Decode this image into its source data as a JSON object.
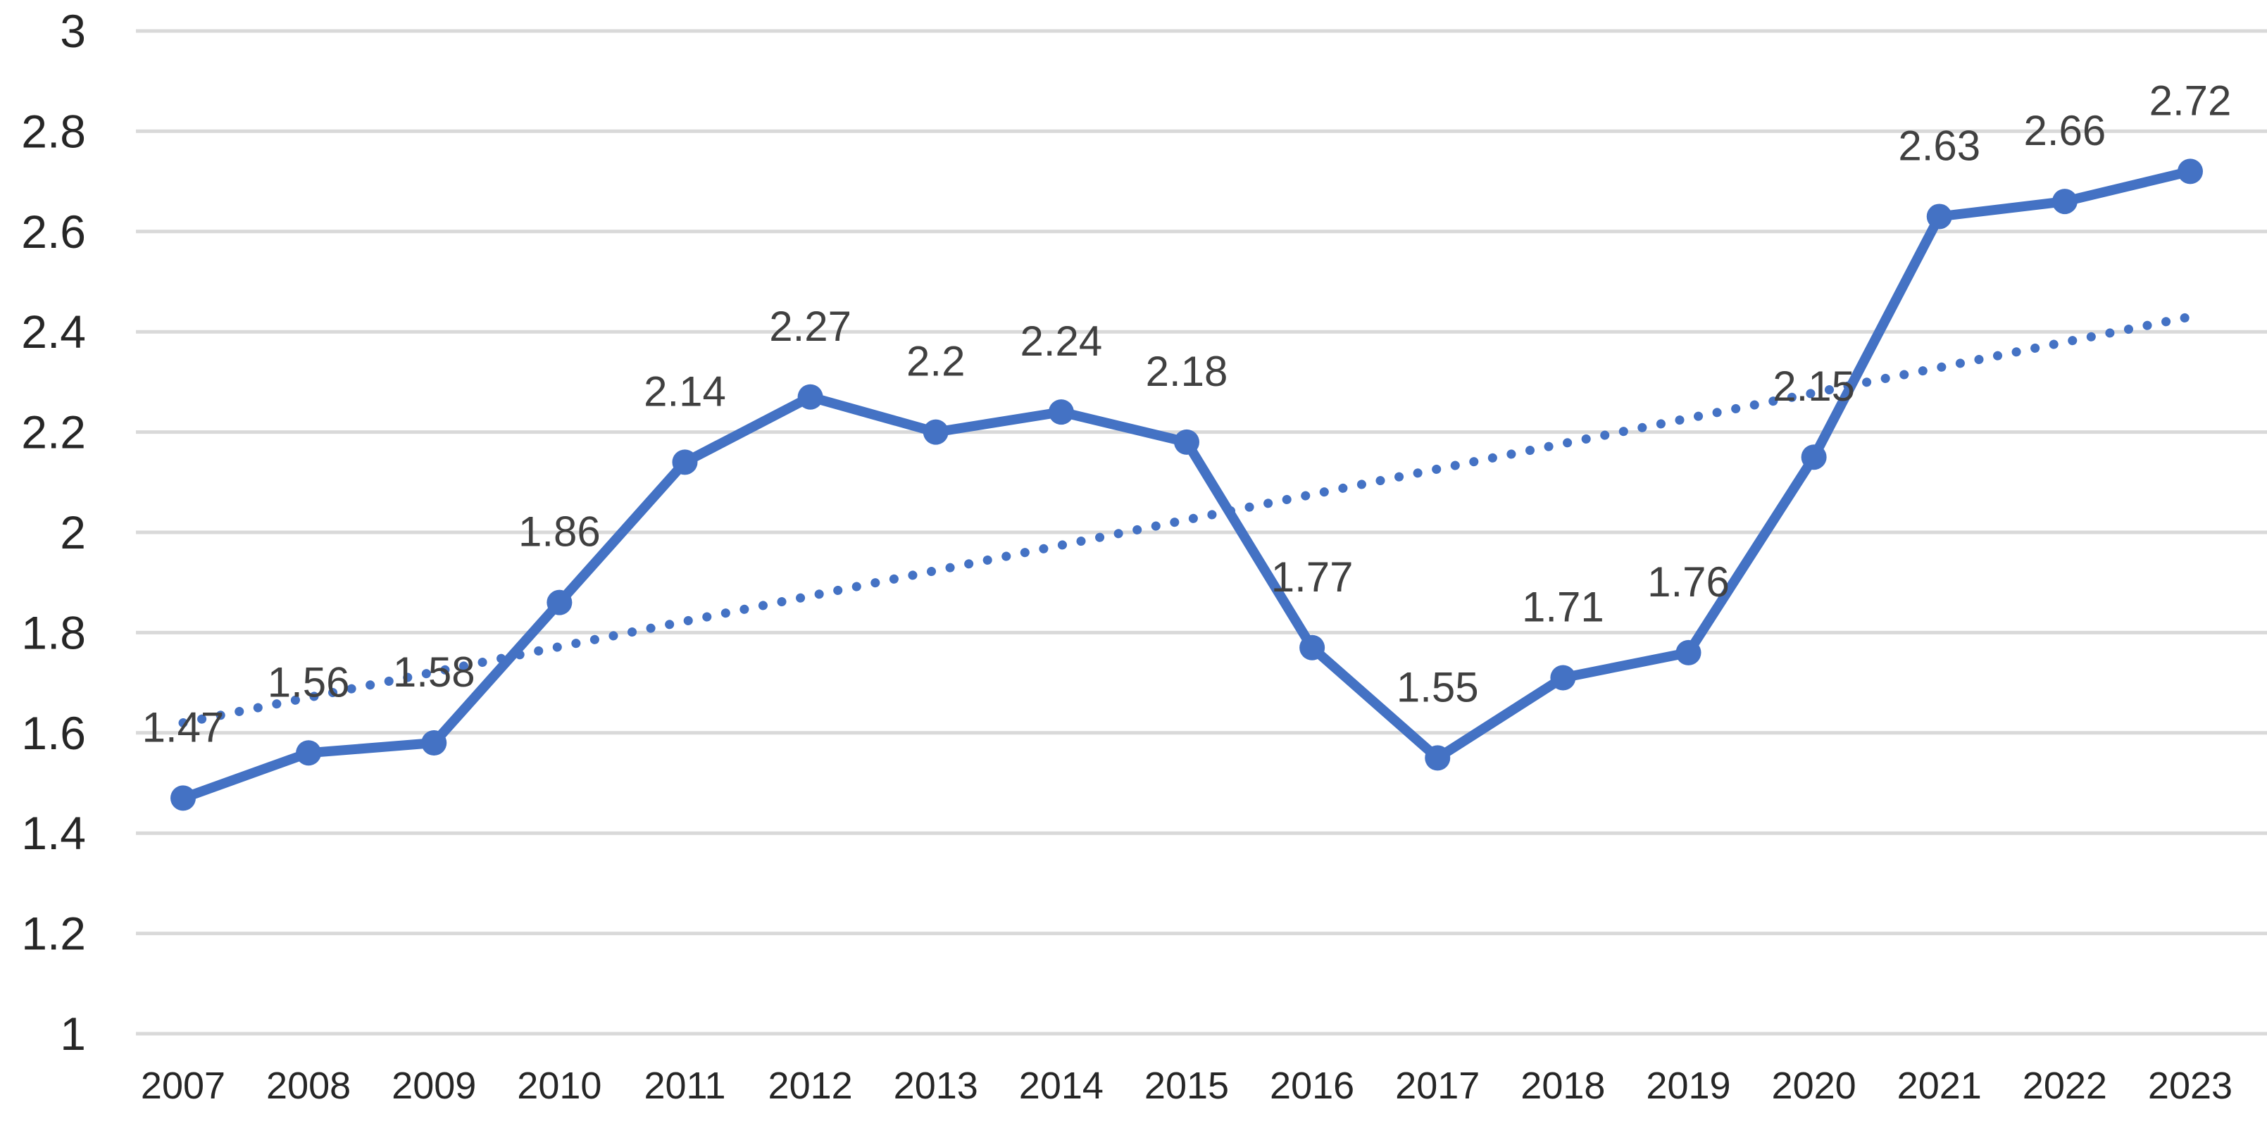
{
  "chart_data": {
    "type": "line",
    "title": "",
    "xlabel": "",
    "ylabel": "",
    "categories": [
      "2007",
      "2008",
      "2009",
      "2010",
      "2011",
      "2012",
      "2013",
      "2014",
      "2015",
      "2016",
      "2017",
      "2018",
      "2019",
      "2020",
      "2021",
      "2022",
      "2023"
    ],
    "series": [
      {
        "name": "values",
        "style": "solid-line-with-round-markers",
        "color": "#4472C4",
        "values": [
          1.47,
          1.56,
          1.58,
          1.86,
          2.14,
          2.27,
          2.2,
          2.24,
          2.18,
          1.77,
          1.55,
          1.71,
          1.76,
          2.15,
          2.63,
          2.66,
          2.72
        ],
        "data_labels": [
          "1.47",
          "1.56",
          "1.58",
          "1.86",
          "2.14",
          "2.27",
          "2.2",
          "2.24",
          "2.18",
          "1.77",
          "1.55",
          "1.71",
          "1.76",
          "2.15",
          "2.63",
          "2.66",
          "2.72"
        ]
      }
    ],
    "trendline": {
      "applies_to": "values",
      "type": "linear",
      "style": "dotted",
      "color": "#4472C4",
      "start_value": 1.62,
      "end_value": 2.43
    },
    "ylim": [
      1,
      3
    ],
    "ytick_step": 0.2,
    "yticks": [
      "3",
      "2.8",
      "2.6",
      "2.4",
      "2.2",
      "2",
      "1.8",
      "1.6",
      "1.4",
      "1.2",
      "1"
    ],
    "grid": true,
    "legend_position": "none",
    "colors": {
      "series": "#4472C4",
      "gridline": "#D9D9D9",
      "axis_line": "#D9D9D9",
      "axis_label": "#262626",
      "data_label": "#404040",
      "background": "#FFFFFF"
    }
  }
}
